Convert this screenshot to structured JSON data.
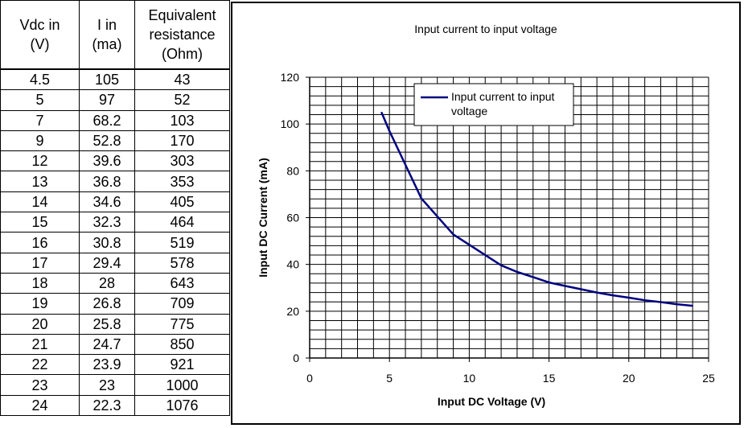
{
  "table": {
    "headers": [
      "Vdc in\n(V)",
      "I in\n(ma)",
      "Equivalent\nresistance\n(Ohm)"
    ],
    "rows": [
      [
        "4.5",
        "105",
        "43"
      ],
      [
        "5",
        "97",
        "52"
      ],
      [
        "7",
        "68.2",
        "103"
      ],
      [
        "9",
        "52.8",
        "170"
      ],
      [
        "12",
        "39.6",
        "303"
      ],
      [
        "13",
        "36.8",
        "353"
      ],
      [
        "14",
        "34.6",
        "405"
      ],
      [
        "15",
        "32.3",
        "464"
      ],
      [
        "16",
        "30.8",
        "519"
      ],
      [
        "17",
        "29.4",
        "578"
      ],
      [
        "18",
        "28",
        "643"
      ],
      [
        "19",
        "26.8",
        "709"
      ],
      [
        "20",
        "25.8",
        "775"
      ],
      [
        "21",
        "24.7",
        "850"
      ],
      [
        "22",
        "23.9",
        "921"
      ],
      [
        "23",
        "23",
        "1000"
      ],
      [
        "24",
        "22.3",
        "1076"
      ]
    ]
  },
  "chart_data": {
    "type": "line",
    "title": "Input current to input voltage",
    "xlabel": "Input DC Voltage (V)",
    "ylabel": "Input DC Current (mA)",
    "xlim": [
      0,
      25
    ],
    "ylim": [
      0,
      120
    ],
    "xticks": [
      0,
      5,
      10,
      15,
      20,
      25
    ],
    "yticks": [
      0,
      20,
      40,
      60,
      80,
      100,
      120
    ],
    "grid": true,
    "legend_position": "top",
    "series": [
      {
        "name": "Input current to input voltage",
        "color": "#000080",
        "x": [
          4.5,
          5,
          7,
          9,
          12,
          13,
          14,
          15,
          16,
          17,
          18,
          19,
          20,
          21,
          22,
          23,
          24
        ],
        "y": [
          105,
          97,
          68.2,
          52.8,
          39.6,
          36.8,
          34.6,
          32.3,
          30.8,
          29.4,
          28,
          26.8,
          25.8,
          24.7,
          23.9,
          23,
          22.3
        ]
      }
    ]
  }
}
